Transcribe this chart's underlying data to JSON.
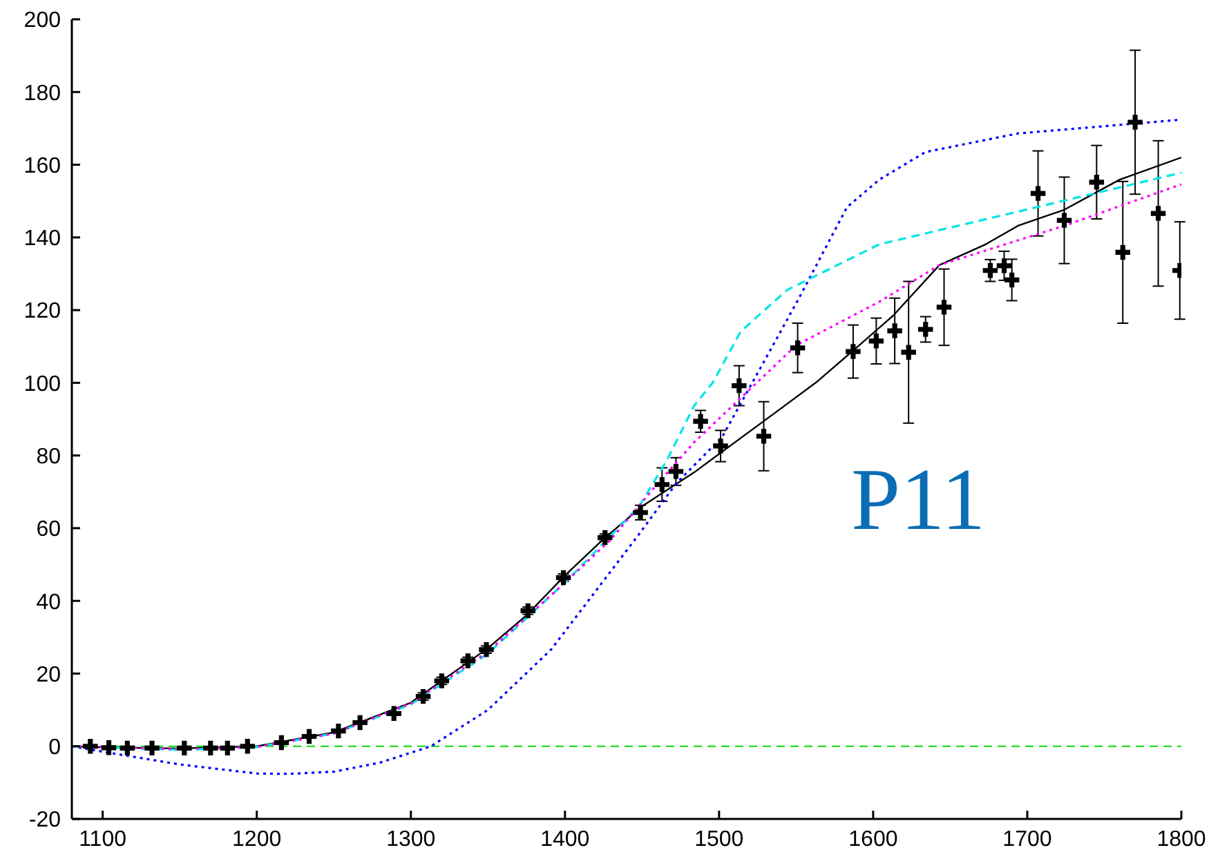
{
  "chart_data": {
    "type": "line",
    "annotations": [
      "P11"
    ],
    "xlim": [
      1080,
      1800
    ],
    "xticks": [
      1100,
      1200,
      1300,
      1400,
      1500,
      1600,
      1700,
      1800
    ],
    "ylim": [
      -20,
      200
    ],
    "yticks": [
      -20,
      0,
      20,
      40,
      60,
      80,
      100,
      120,
      140,
      160,
      180,
      200
    ],
    "grid": false,
    "legend": false,
    "ref_lines": [
      {
        "axis": "y",
        "value": 0,
        "color": "#00dd00",
        "line_style": "dashed"
      }
    ],
    "series": [
      {
        "type": "scatter",
        "marker": "cross",
        "color": "#000000",
        "x": [
          1092,
          1104,
          1116,
          1132,
          1153,
          1170,
          1181,
          1194,
          1216,
          1234,
          1253,
          1267,
          1289,
          1308,
          1320,
          1337,
          1349,
          1376,
          1399,
          1426,
          1449,
          1463,
          1472,
          1488,
          1501,
          1513,
          1529,
          1551,
          1587,
          1602,
          1614,
          1623,
          1634,
          1646,
          1676,
          1685,
          1690,
          1707,
          1724,
          1745,
          1762,
          1770,
          1785,
          1799
        ],
        "values": [
          0,
          -0.4,
          -0.5,
          -0.5,
          -0.5,
          -0.5,
          -0.5,
          0,
          1,
          2.7,
          4.2,
          6.5,
          9,
          13.7,
          18,
          23.5,
          26.6,
          37.3,
          46.4,
          57.4,
          64.3,
          72,
          75.6,
          89.4,
          82.6,
          99.2,
          85.3,
          109.6,
          108.6,
          111.5,
          114.3,
          108.4,
          114.7,
          120.8,
          130.9,
          132.2,
          128.3,
          152.1,
          144.7,
          155.2,
          135.9,
          171.7,
          146.6,
          130.9
        ],
        "errors": [
          null,
          null,
          null,
          null,
          null,
          null,
          null,
          null,
          null,
          null,
          null,
          null,
          null,
          1,
          1,
          1,
          1,
          1,
          1,
          1,
          2,
          4.6,
          3.8,
          3,
          4.3,
          5.5,
          9.5,
          6.8,
          7.3,
          6.3,
          9,
          19.5,
          3.5,
          10.5,
          3,
          4,
          5.7,
          11.7,
          11.9,
          10.1,
          19.5,
          19.8,
          20,
          13.4
        ]
      },
      {
        "color": "#000000",
        "line_style": "solid",
        "x": [
          1080,
          1100,
          1150,
          1200,
          1250,
          1300,
          1350,
          1375,
          1400,
          1425,
          1450,
          1484,
          1541,
          1563,
          1589,
          1613,
          1643,
          1673,
          1694,
          1724,
          1760,
          1800
        ],
        "values": [
          0,
          -0.3,
          -0.6,
          0,
          3.8,
          12,
          27,
          36,
          47,
          57,
          66,
          75.4,
          93.2,
          100.1,
          109.6,
          118.5,
          132.4,
          138.1,
          143.2,
          147.6,
          155.9,
          162
        ]
      },
      {
        "color": "#0000ff",
        "line_style": "dotted",
        "x": [
          1080,
          1100,
          1150,
          1200,
          1220,
          1250,
          1280,
          1313,
          1350,
          1391,
          1423,
          1448,
          1472,
          1502,
          1535,
          1553,
          1583,
          1604,
          1634,
          1694,
          1800
        ],
        "values": [
          0,
          -1.5,
          -5,
          -7.5,
          -7.6,
          -7,
          -4.5,
          0,
          10,
          26.6,
          44.4,
          58.3,
          72.2,
          85.1,
          110.3,
          124.2,
          148.3,
          155.9,
          163.5,
          168.6,
          172.4
        ]
      },
      {
        "color": "#00e5e5",
        "line_style": "dashed",
        "x": [
          1080,
          1150,
          1200,
          1250,
          1300,
          1350,
          1400,
          1448,
          1466,
          1484,
          1496,
          1514,
          1544,
          1604,
          1706,
          1800
        ],
        "values": [
          0,
          -1,
          -0.2,
          3.5,
          11.5,
          25.5,
          45,
          65.9,
          78.6,
          93.8,
          100.1,
          114.1,
          125.5,
          138.1,
          148.3,
          157.8
        ]
      },
      {
        "color": "#ff00ff",
        "line_style": "dotted",
        "x": [
          1080,
          1150,
          1200,
          1250,
          1300,
          1350,
          1400,
          1430,
          1460,
          1484,
          1550,
          1604,
          1643,
          1724,
          1800
        ],
        "values": [
          0,
          -0.8,
          -0.2,
          3.5,
          11.8,
          26,
          45,
          57,
          72.2,
          83.7,
          110.3,
          122.3,
          132.4,
          143.2,
          154.6
        ]
      }
    ]
  }
}
